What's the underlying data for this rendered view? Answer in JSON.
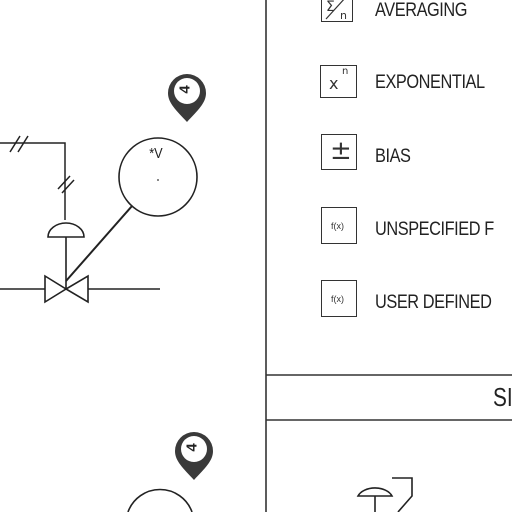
{
  "legend": {
    "items": [
      {
        "symbol": "Σ/n",
        "label": "AVERAGING"
      },
      {
        "symbol": "x^n",
        "label": "EXPONENTIAL"
      },
      {
        "symbol": "±",
        "label": "BIAS"
      },
      {
        "symbol": "f(x)",
        "label": "UNSPECIFIED F"
      },
      {
        "symbol": "f(x)",
        "label": "USER DEFINED"
      }
    ],
    "section_title": "SI"
  },
  "diagram": {
    "instrument_label": "*V",
    "tag_marker_1": "4",
    "tag_marker_2": "4"
  }
}
